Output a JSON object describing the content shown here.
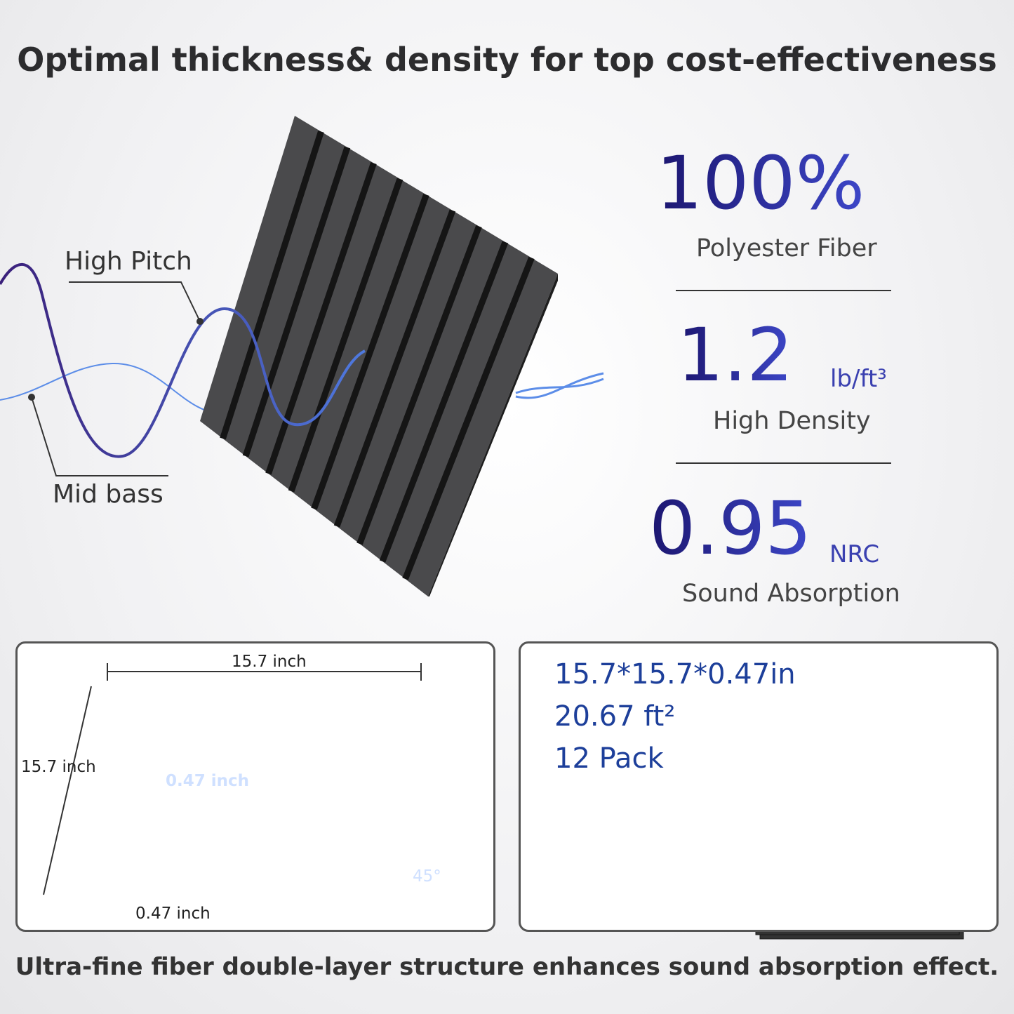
{
  "header": {
    "title": "Optimal thickness& density for top cost-effectiveness"
  },
  "waves": {
    "high": "High Pitch",
    "low": "Mid bass"
  },
  "stats": [
    {
      "value": "100%",
      "label": "Polyester Fiber"
    },
    {
      "value": "1.2",
      "unit": "lb/ft³",
      "label": "High Density"
    },
    {
      "value": "0.95",
      "unit": "NRC",
      "label": "Sound Absorption"
    }
  ],
  "dimensions": {
    "width": "15.7 inch",
    "height": "15.7 inch",
    "depth": "0.47 inch",
    "groove": "0.47 inch",
    "angle": "45°"
  },
  "specs": [
    "15.7*15.7*0.47in",
    "20.67 ft²",
    "12 Pack"
  ],
  "footer": "Ultra-fine fiber double-layer structure enhances sound absorption effect."
}
